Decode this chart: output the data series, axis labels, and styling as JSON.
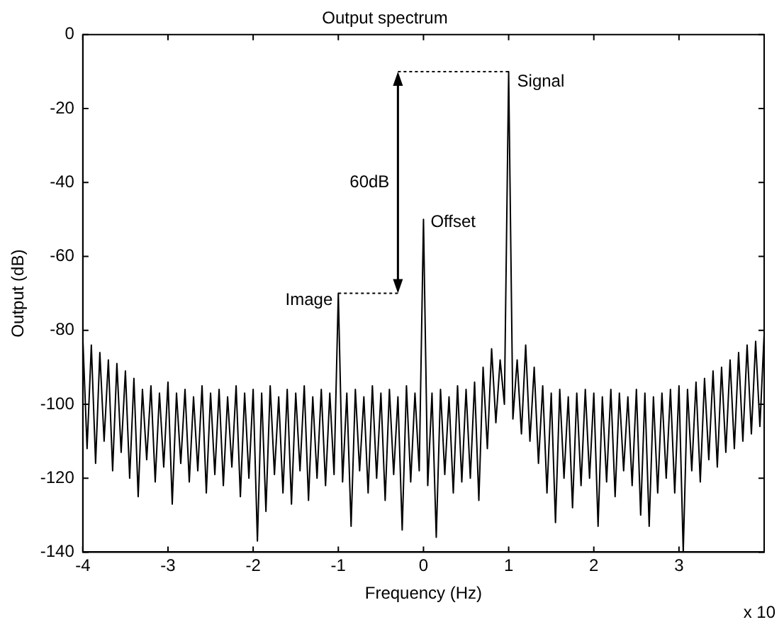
{
  "chart_data": {
    "type": "line",
    "title": "Output spectrum",
    "xlabel": "Frequency (Hz)",
    "ylabel": "Output (dB)",
    "xlim": [
      -4,
      4
    ],
    "xticks": [
      -4,
      -3,
      -2,
      -1,
      0,
      1,
      2,
      3,
      {
        "value": 4,
        "label": null
      }
    ],
    "ylim": [
      -140,
      0
    ],
    "yticks": [
      -140,
      -120,
      -100,
      -80,
      -60,
      -40,
      -20,
      0
    ],
    "grid": false,
    "legend": false,
    "marker": "none",
    "annotations": [
      {
        "text": "Signal",
        "x": 1,
        "y": -10
      },
      {
        "text": "Offset",
        "x": 0,
        "y": -50
      },
      {
        "text": "Image",
        "x": -1,
        "y": -70
      },
      "60dB",
      "x 10"
    ],
    "series": [
      {
        "color": "#000000",
        "line_style": "solid",
        "x": [
          -4,
          -3.95,
          -3.9,
          -3.85,
          -3.8,
          -3.75,
          -3.7,
          -3.65,
          -3.6,
          -3.55,
          -3.5,
          -3.45,
          -3.4,
          -3.35,
          -3.3,
          -3.25,
          -3.2,
          -3.15,
          -3.1,
          -3.05,
          -3,
          -2.95,
          -2.9,
          -2.85,
          -2.8,
          -2.75,
          -2.7,
          -2.65,
          -2.6,
          -2.55,
          -2.5,
          -2.45,
          -2.4,
          -2.35,
          -2.3,
          -2.25,
          -2.2,
          -2.15,
          -2.1,
          -2.05,
          -2,
          -1.95,
          -1.9,
          -1.85,
          -1.8,
          -1.75,
          -1.7,
          -1.65,
          -1.6,
          -1.55,
          -1.5,
          -1.45,
          -1.4,
          -1.35,
          -1.3,
          -1.25,
          -1.2,
          -1.15,
          -1.1,
          -1.05,
          -1,
          -0.95,
          -0.9,
          -0.85,
          -0.8,
          -0.75,
          -0.7,
          -0.65,
          -0.6,
          -0.55,
          -0.5,
          -0.45,
          -0.4,
          -0.35,
          -0.3,
          -0.25,
          -0.2,
          -0.15,
          -0.1,
          -0.05,
          0,
          0.05,
          0.1,
          0.15,
          0.2,
          0.25,
          0.3,
          0.35,
          0.4,
          0.45,
          0.5,
          0.55,
          0.6,
          0.65,
          0.7,
          0.75,
          0.8,
          0.85,
          0.9,
          0.95,
          1,
          1.05,
          1.1,
          1.15,
          1.2,
          1.25,
          1.3,
          1.35,
          1.4,
          1.45,
          1.5,
          1.55,
          1.6,
          1.65,
          1.7,
          1.75,
          1.8,
          1.85,
          1.9,
          1.95,
          2,
          2.05,
          2.1,
          2.15,
          2.2,
          2.25,
          2.3,
          2.35,
          2.4,
          2.45,
          2.5,
          2.55,
          2.6,
          2.65,
          2.7,
          2.75,
          2.8,
          2.85,
          2.9,
          2.95,
          3,
          3.05,
          3.1,
          3.15,
          3.2,
          3.25,
          3.3,
          3.35,
          3.4,
          3.45,
          3.5,
          3.55,
          3.6,
          3.65,
          3.7,
          3.75,
          3.8,
          3.85,
          3.9,
          3.95,
          4
        ],
        "values": [
          -82,
          -112,
          -84,
          -116,
          -86,
          -110,
          -88,
          -118,
          -89,
          -113,
          -91,
          -120,
          -93,
          -125,
          -96,
          -115,
          -95,
          -121,
          -97,
          -117,
          -94,
          -127,
          -97,
          -116,
          -96,
          -121,
          -98,
          -118,
          -95,
          -124,
          -97,
          -119,
          -96,
          -122,
          -98,
          -117,
          -95,
          -125,
          -97,
          -120,
          -96,
          -137,
          -97,
          -129,
          -95,
          -119,
          -98,
          -124,
          -96,
          -127,
          -97,
          -118,
          -95,
          -126,
          -98,
          -120,
          -96,
          -122,
          -97,
          -119,
          -70,
          -121,
          -97,
          -133,
          -96,
          -118,
          -98,
          -124,
          -95,
          -120,
          -97,
          -126,
          -96,
          -119,
          -98,
          -134,
          -95,
          -121,
          -97,
          -118,
          -50,
          -122,
          -97,
          -136,
          -96,
          -119,
          -98,
          -124,
          -95,
          -121,
          -96,
          -120,
          -94,
          -126,
          -90,
          -112,
          -85,
          -105,
          -88,
          -100,
          -10,
          -104,
          -88,
          -108,
          -84,
          -110,
          -90,
          -116,
          -95,
          -124,
          -97,
          -132,
          -96,
          -120,
          -98,
          -128,
          -97,
          -122,
          -96,
          -120,
          -97,
          -133,
          -98,
          -121,
          -96,
          -125,
          -97,
          -118,
          -98,
          -122,
          -96,
          -130,
          -97,
          -133,
          -98,
          -124,
          -97,
          -120,
          -96,
          -124,
          -95,
          -140,
          -96,
          -118,
          -94,
          -121,
          -93,
          -115,
          -91,
          -117,
          -90,
          -113,
          -88,
          -112,
          -86,
          -110,
          -84,
          -108,
          -83,
          -106,
          -81
        ]
      },
      {
        "color": "#000000",
        "line_style": "dotted",
        "x": [
          -1,
          -0.3
        ],
        "values": [
          -70,
          -70
        ]
      },
      {
        "color": "#000000",
        "line_style": "dotted",
        "x": [
          -0.3,
          1
        ],
        "values": [
          -10,
          -10
        ]
      }
    ]
  }
}
